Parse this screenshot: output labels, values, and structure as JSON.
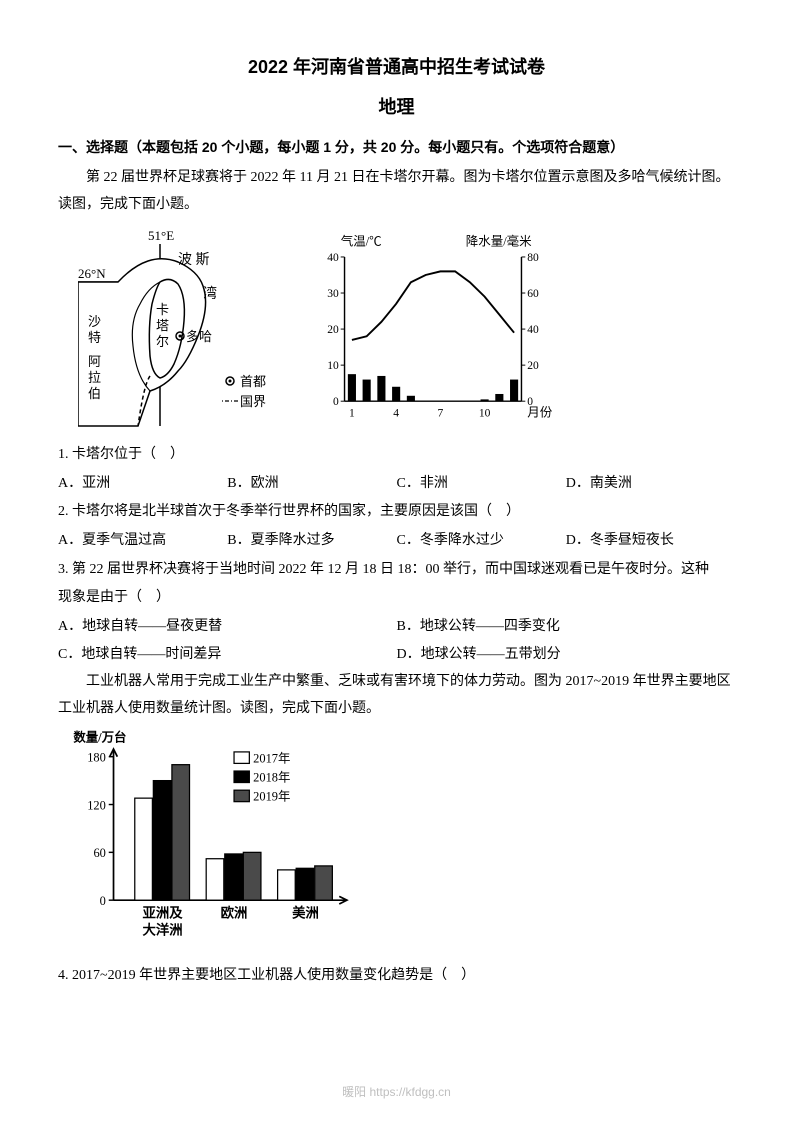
{
  "header": {
    "title_main": "2022 年河南省普通高中招生考试试卷",
    "title_sub": "地理"
  },
  "section1": {
    "header": "一、选择题（本题包括 20 个小题，每小题 1 分，共 20 分。每小题只有。个选项符合题意）",
    "intro": "第 22 届世界杯足球赛将于 2022 年 11 月 21 日在卡塔尔开幕。图为卡塔尔位置示意图及多哈气候统计图。读图，完成下面小题。"
  },
  "map": {
    "lon_label": "51°E",
    "lat_label": "26°N",
    "labels": {
      "bosi": "波 斯",
      "wan": "湾",
      "qatar": "卡塔尔",
      "doha": "多哈",
      "saudi1": "沙特",
      "saudi2": "阿拉伯"
    },
    "legend": {
      "capital": "首都",
      "border": "国界"
    },
    "colors": {
      "line": "#000000",
      "bg": "#ffffff"
    }
  },
  "climate_chart": {
    "type": "combo",
    "title_left": "气温/℃",
    "title_right": "降水量/毫米",
    "x_label": "月份",
    "x_ticks": [
      "1",
      "4",
      "7",
      "10"
    ],
    "temp_y": {
      "min": 0,
      "max": 40,
      "step": 10,
      "ticks": [
        0,
        10,
        20,
        30,
        40
      ]
    },
    "precip_y": {
      "min": 0,
      "max": 80,
      "step": 20,
      "ticks": [
        0,
        20,
        40,
        60,
        80
      ]
    },
    "months": [
      1,
      2,
      3,
      4,
      5,
      6,
      7,
      8,
      9,
      10,
      11,
      12
    ],
    "temp_values": [
      17,
      18,
      22,
      27,
      33,
      35,
      36,
      36,
      33,
      29,
      24,
      19
    ],
    "precip_values": [
      15,
      12,
      14,
      8,
      3,
      0,
      0,
      0,
      0,
      1,
      4,
      12
    ],
    "colors": {
      "axis": "#000000",
      "temp_line": "#000000",
      "bar_fill": "#000000",
      "bg": "#ffffff"
    },
    "line_width": 2,
    "bar_width": 0.55
  },
  "q1": {
    "stem": "1. 卡塔尔位于（　）",
    "A": "A．亚洲",
    "B": "B．欧洲",
    "C": "C．非洲",
    "D": "D．南美洲"
  },
  "q2": {
    "stem": "2. 卡塔尔将是北半球首次于冬季举行世界杯的国家，主要原因是该国（　）",
    "A": "A．夏季气温过高",
    "B": "B．夏季降水过多",
    "C": "C．冬季降水过少",
    "D": "D．冬季昼短夜长"
  },
  "q3": {
    "stem1": "3. 第 22 届世界杯决赛将于当地时间 2022 年 12 月 18 日 18：00 举行，而中国球迷观看已是午夜时分。这种",
    "stem2": "现象是由于（　）",
    "A": "A．地球自转——昼夜更替",
    "B": "B．地球公转——四季变化",
    "C": "C．地球自转——时间差异",
    "D": "D．地球公转——五带划分"
  },
  "intro2": "工业机器人常用于完成工业生产中繁重、乏味或有害环境下的体力劳动。图为 2017~2019 年世界主要地区工业机器人使用数量统计图。读图，完成下面小题。",
  "bar_chart": {
    "type": "grouped_bar",
    "y_label": "数量/万台",
    "y_ticks": [
      0,
      60,
      120,
      180
    ],
    "ylim": [
      0,
      180
    ],
    "categories": [
      "亚洲及大洋洲",
      "欧洲",
      "美洲"
    ],
    "cat_line1": [
      "亚洲及",
      "欧洲",
      "美洲"
    ],
    "cat_line2": [
      "大洋洲",
      "",
      ""
    ],
    "series": [
      {
        "name": "2017年",
        "values": [
          128,
          52,
          38
        ],
        "fill": "#ffffff",
        "stroke": "#000000"
      },
      {
        "name": "2018年",
        "values": [
          150,
          58,
          40
        ],
        "fill": "#000000",
        "stroke": "#000000"
      },
      {
        "name": "2019年",
        "values": [
          170,
          60,
          43
        ],
        "fill": "#4a4a4a",
        "stroke": "#000000"
      }
    ],
    "legend": [
      "2017年",
      "2018年",
      "2019年"
    ],
    "legend_markers": [
      "hollow",
      "black",
      "gray"
    ],
    "colors": {
      "axis": "#000000",
      "bg": "#ffffff"
    },
    "bar_width": 0.26,
    "label_fontsize": 13
  },
  "q4": {
    "stem": "4. 2017~2019 年世界主要地区工业机器人使用数量变化趋势是（　）"
  },
  "footer": {
    "text": "暖阳 https://kfdgg.cn"
  }
}
